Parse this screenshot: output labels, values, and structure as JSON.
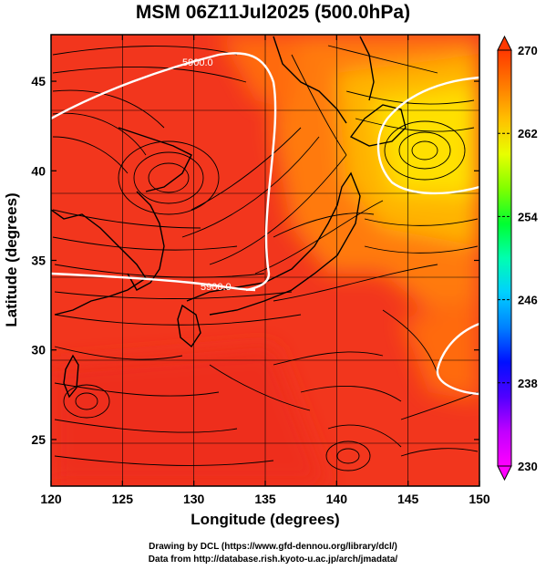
{
  "title": "MSM 06Z11Jul2025 (500.0hPa)",
  "footer": {
    "line1": "Drawing by DCL (https://www.gfd-dennou.org/library/dcl/)",
    "line2": "Data from http://database.rish.kyoto-u.ac.jp/arch/jmadata/"
  },
  "map": {
    "xlabel": "Longitude (degrees)",
    "ylabel": "Latitude  (degrees)",
    "lon_range": [
      120,
      150
    ],
    "lat_range": [
      22.4,
      47.6
    ],
    "x_ticks": [
      "120",
      "125",
      "130",
      "135",
      "140",
      "145",
      "150"
    ],
    "y_ticks": [
      "25",
      "30",
      "35",
      "40",
      "45"
    ],
    "contour_label": "5900.0",
    "colorbar": {
      "min": 230,
      "max": 270,
      "labels": [
        "270",
        "262",
        "254",
        "246",
        "238",
        "230"
      ],
      "colors": [
        "#ff00ff",
        "#c000ff",
        "#5000ff",
        "#0010ff",
        "#0080ff",
        "#00d0ff",
        "#00ffb0",
        "#00ff30",
        "#80ff00",
        "#e8ff00",
        "#ffc000",
        "#ff7a00",
        "#ff3800"
      ]
    },
    "field_colors": {
      "warm": "#f2361d",
      "mid": "#ff5a0d",
      "orange": "#ff8a00",
      "yellow": "#ffd000",
      "bright": "#fff000"
    }
  }
}
